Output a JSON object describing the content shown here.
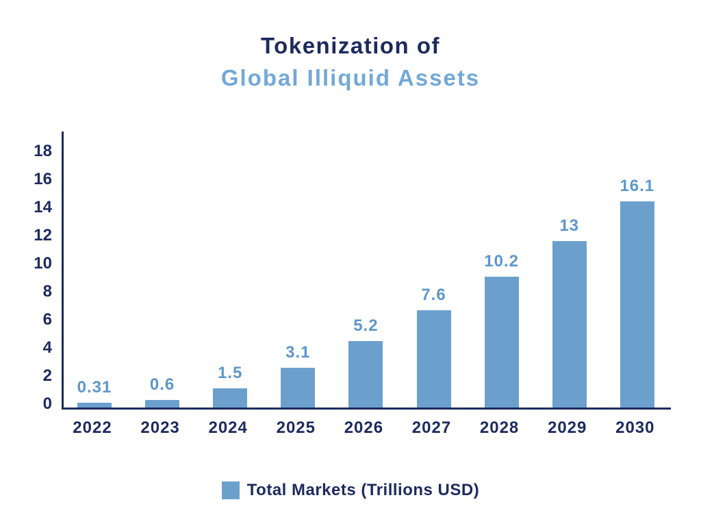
{
  "title": {
    "line1": "Tokenization of",
    "line2": "Global Illiquid Assets"
  },
  "legend": {
    "label": "Total Markets (Trillions USD)",
    "swatch_color": "#6BA0CD"
  },
  "colors": {
    "navy": "#1C2A5E",
    "bar_blue": "#6BA0CD",
    "subtitle_blue": "#72A8D8",
    "value_label_blue": "#5E97C9"
  },
  "chart_data": {
    "type": "bar",
    "title": "Tokenization of Global Illiquid Assets",
    "categories": [
      "2022",
      "2023",
      "2024",
      "2025",
      "2026",
      "2027",
      "2028",
      "2029",
      "2030"
    ],
    "values": [
      0.31,
      0.6,
      1.5,
      3.1,
      5.2,
      7.6,
      10.2,
      13,
      16.1
    ],
    "value_labels": [
      "0.31",
      "0.6",
      "1.5",
      "3.1",
      "5.2",
      "7.6",
      "10.2",
      "13",
      "16.1"
    ],
    "series_name": "Total Markets (Trillions USD)",
    "xlabel": "",
    "ylabel": "",
    "ylim": [
      0,
      18
    ],
    "yticks": [
      0,
      2,
      4,
      6,
      8,
      10,
      12,
      14,
      16,
      18
    ],
    "grid": false,
    "legend_position": "bottom",
    "bar_height_scale": 0.9
  }
}
